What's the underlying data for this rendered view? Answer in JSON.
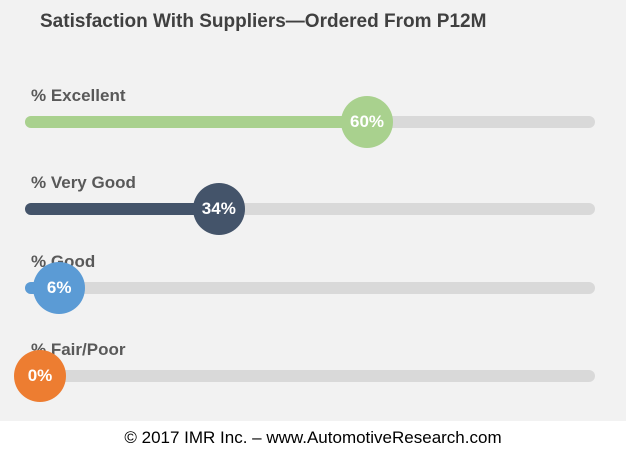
{
  "title": "Satisfaction With Suppliers—Ordered From P12M",
  "footer": "© 2017 IMR Inc. – www.AutomotiveResearch.com",
  "chart_data": {
    "type": "bar",
    "title": "Satisfaction With Suppliers—Ordered From P12M",
    "categories": [
      "% Excellent",
      "% Very Good",
      "% Good",
      "% Fair/Poor"
    ],
    "values": [
      60,
      34,
      6,
      0
    ],
    "value_labels": [
      "60%",
      "34%",
      "6%",
      "0%"
    ],
    "colors": [
      "#a9d18e",
      "#44546a",
      "#5b9bd5",
      "#ed7d31"
    ],
    "track_color": "#d9d9d9",
    "xlim": [
      0,
      100
    ],
    "unit": "%"
  }
}
